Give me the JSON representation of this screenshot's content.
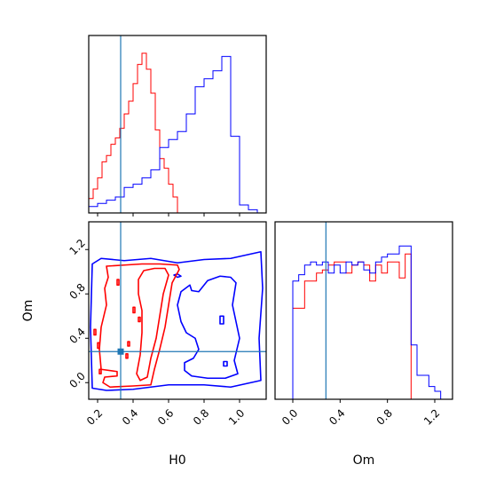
{
  "chart_data": {
    "type": "corner",
    "parameters": [
      "H0",
      "Om"
    ],
    "colors": {
      "red": "#ff0000",
      "blue": "#0000ff",
      "truth": "#1f77b4",
      "frame": "#000000"
    },
    "truth": {
      "H0": 0.33,
      "Om": 0.28
    },
    "panels": {
      "hist_H0": {
        "xlim": [
          0.15,
          1.15
        ],
        "ticks": [
          0.2,
          0.4,
          0.6,
          0.8,
          1.0
        ],
        "series": [
          {
            "color": "red",
            "edges": [
              0.15,
              0.175,
              0.2,
              0.225,
              0.25,
              0.275,
              0.3,
              0.325,
              0.35,
              0.375,
              0.4,
              0.425,
              0.45,
              0.475,
              0.5,
              0.525,
              0.55,
              0.575,
              0.6,
              0.625,
              0.65
            ],
            "values": [
              0.09,
              0.15,
              0.22,
              0.32,
              0.36,
              0.43,
              0.47,
              0.53,
              0.62,
              0.7,
              0.81,
              0.93,
              1.0,
              0.9,
              0.75,
              0.52,
              0.34,
              0.28,
              0.18,
              0.1
            ]
          },
          {
            "color": "blue",
            "edges": [
              0.15,
              0.2,
              0.25,
              0.3,
              0.35,
              0.4,
              0.45,
              0.5,
              0.55,
              0.6,
              0.65,
              0.7,
              0.75,
              0.8,
              0.85,
              0.9,
              0.95,
              1.0,
              1.05,
              1.1,
              1.15
            ],
            "values": [
              0.04,
              0.06,
              0.08,
              0.1,
              0.16,
              0.18,
              0.22,
              0.27,
              0.41,
              0.46,
              0.51,
              0.62,
              0.79,
              0.84,
              0.89,
              0.98,
              0.48,
              0.05,
              0.02,
              0.0
            ]
          }
        ]
      },
      "hist_Om": {
        "xlim": [
          -0.15,
          1.35
        ],
        "ticks": [
          0.0,
          0.4,
          0.8,
          1.2
        ],
        "series": [
          {
            "color": "red",
            "edges": [
              0.0,
              0.05,
              0.1,
              0.15,
              0.2,
              0.25,
              0.3,
              0.35,
              0.4,
              0.45,
              0.5,
              0.55,
              0.6,
              0.65,
              0.7,
              0.75,
              0.8,
              0.85,
              0.9,
              0.95,
              1.0
            ],
            "values": [
              0.57,
              0.57,
              0.74,
              0.74,
              0.79,
              0.81,
              0.84,
              0.86,
              0.86,
              0.79,
              0.84,
              0.86,
              0.84,
              0.74,
              0.84,
              0.79,
              0.86,
              0.86,
              0.76,
              0.91
            ]
          },
          {
            "color": "blue",
            "edges": [
              -0.15,
              -0.1,
              -0.05,
              0.0,
              0.05,
              0.1,
              0.15,
              0.2,
              0.25,
              0.3,
              0.35,
              0.4,
              0.45,
              0.5,
              0.55,
              0.6,
              0.65,
              0.7,
              0.75,
              0.8,
              0.85,
              0.9,
              0.95,
              1.0,
              1.05,
              1.1,
              1.15,
              1.2,
              1.25,
              1.3,
              1.35
            ],
            "values": [
              0.0,
              0.0,
              0.0,
              0.74,
              0.78,
              0.84,
              0.86,
              0.84,
              0.86,
              0.79,
              0.84,
              0.79,
              0.86,
              0.84,
              0.86,
              0.81,
              0.79,
              0.86,
              0.89,
              0.91,
              0.91,
              0.96,
              0.96,
              0.34,
              0.15,
              0.15,
              0.08,
              0.05,
              0.0,
              0.0
            ]
          }
        ]
      },
      "contour": {
        "xlim": [
          0.15,
          1.15
        ],
        "ylim": [
          -0.15,
          1.45
        ],
        "xticks": [
          0.2,
          0.4,
          0.6,
          0.8,
          1.0
        ],
        "yticks": [
          0.0,
          0.4,
          0.8,
          1.2
        ],
        "series": [
          {
            "color": "blue",
            "contours": [
              [
                [
                  0.17,
                  1.07
                ],
                [
                  0.22,
                  1.12
                ],
                [
                  0.35,
                  1.1
                ],
                [
                  0.5,
                  1.12
                ],
                [
                  0.65,
                  1.08
                ],
                [
                  0.8,
                  1.11
                ],
                [
                  0.95,
                  1.12
                ],
                [
                  1.12,
                  1.18
                ],
                [
                  1.13,
                  0.85
                ],
                [
                  1.11,
                  0.4
                ],
                [
                  1.12,
                  0.02
                ],
                [
                  0.95,
                  -0.04
                ],
                [
                  0.8,
                  -0.02
                ],
                [
                  0.6,
                  -0.02
                ],
                [
                  0.4,
                  -0.06
                ],
                [
                  0.25,
                  -0.07
                ],
                [
                  0.17,
                  -0.05
                ],
                [
                  0.16,
                  0.5
                ],
                [
                  0.17,
                  1.07
                ]
              ],
              [
                [
                  0.72,
                  0.88
                ],
                [
                  0.73,
                  0.83
                ],
                [
                  0.77,
                  0.82
                ],
                [
                  0.82,
                  0.92
                ],
                [
                  0.89,
                  0.96
                ],
                [
                  0.95,
                  0.95
                ],
                [
                  0.98,
                  0.9
                ],
                [
                  0.96,
                  0.7
                ],
                [
                  0.98,
                  0.55
                ],
                [
                  1.0,
                  0.4
                ],
                [
                  0.97,
                  0.2
                ],
                [
                  0.99,
                  0.08
                ],
                [
                  0.92,
                  0.04
                ],
                [
                  0.82,
                  0.04
                ],
                [
                  0.73,
                  0.06
                ],
                [
                  0.69,
                  0.11
                ],
                [
                  0.69,
                  0.18
                ],
                [
                  0.74,
                  0.22
                ],
                [
                  0.77,
                  0.3
                ],
                [
                  0.75,
                  0.4
                ],
                [
                  0.7,
                  0.45
                ],
                [
                  0.67,
                  0.55
                ],
                [
                  0.65,
                  0.7
                ],
                [
                  0.67,
                  0.82
                ],
                [
                  0.72,
                  0.88
                ]
              ],
              [
                [
                  0.63,
                  0.97
                ],
                [
                  0.65,
                  0.95
                ],
                [
                  0.67,
                  0.96
                ],
                [
                  0.65,
                  0.98
                ],
                [
                  0.63,
                  0.97
                ]
              ],
              [
                [
                  0.89,
                  0.6
                ],
                [
                  0.91,
                  0.6
                ],
                [
                  0.91,
                  0.53
                ],
                [
                  0.89,
                  0.53
                ],
                [
                  0.89,
                  0.6
                ]
              ],
              [
                [
                  0.91,
                  0.19
                ],
                [
                  0.93,
                  0.19
                ],
                [
                  0.93,
                  0.15
                ],
                [
                  0.91,
                  0.15
                ],
                [
                  0.91,
                  0.19
                ]
              ]
            ]
          },
          {
            "color": "red",
            "contours": [
              [
                [
                  0.25,
                  1.05
                ],
                [
                  0.35,
                  1.06
                ],
                [
                  0.45,
                  1.07
                ],
                [
                  0.55,
                  1.07
                ],
                [
                  0.65,
                  1.06
                ],
                [
                  0.66,
                  1.02
                ],
                [
                  0.62,
                  0.9
                ],
                [
                  0.6,
                  0.7
                ],
                [
                  0.58,
                  0.5
                ],
                [
                  0.55,
                  0.3
                ],
                [
                  0.52,
                  0.12
                ],
                [
                  0.5,
                  -0.02
                ],
                [
                  0.4,
                  -0.03
                ],
                [
                  0.27,
                  -0.04
                ],
                [
                  0.23,
                  0.0
                ],
                [
                  0.24,
                  0.05
                ],
                [
                  0.31,
                  0.06
                ],
                [
                  0.31,
                  0.1
                ],
                [
                  0.22,
                  0.12
                ],
                [
                  0.21,
                  0.3
                ],
                [
                  0.22,
                  0.5
                ],
                [
                  0.25,
                  0.7
                ],
                [
                  0.24,
                  0.85
                ],
                [
                  0.26,
                  0.95
                ],
                [
                  0.25,
                  1.05
                ]
              ],
              [
                [
                  0.43,
                  0.93
                ],
                [
                  0.46,
                  1.01
                ],
                [
                  0.52,
                  1.03
                ],
                [
                  0.58,
                  1.03
                ],
                [
                  0.6,
                  0.97
                ],
                [
                  0.57,
                  0.8
                ],
                [
                  0.55,
                  0.6
                ],
                [
                  0.53,
                  0.4
                ],
                [
                  0.5,
                  0.22
                ],
                [
                  0.48,
                  0.05
                ],
                [
                  0.44,
                  0.02
                ],
                [
                  0.42,
                  0.08
                ],
                [
                  0.44,
                  0.25
                ],
                [
                  0.45,
                  0.45
                ],
                [
                  0.45,
                  0.65
                ],
                [
                  0.43,
                  0.8
                ],
                [
                  0.43,
                  0.93
                ]
              ],
              [
                [
                  0.31,
                  0.93
                ],
                [
                  0.32,
                  0.93
                ],
                [
                  0.32,
                  0.88
                ],
                [
                  0.31,
                  0.88
                ],
                [
                  0.31,
                  0.93
                ]
              ],
              [
                [
                  0.4,
                  0.68
                ],
                [
                  0.41,
                  0.68
                ],
                [
                  0.41,
                  0.63
                ],
                [
                  0.4,
                  0.63
                ],
                [
                  0.4,
                  0.68
                ]
              ],
              [
                [
                  0.43,
                  0.59
                ],
                [
                  0.44,
                  0.59
                ],
                [
                  0.44,
                  0.55
                ],
                [
                  0.43,
                  0.55
                ],
                [
                  0.43,
                  0.59
                ]
              ],
              [
                [
                  0.37,
                  0.37
                ],
                [
                  0.38,
                  0.37
                ],
                [
                  0.38,
                  0.33
                ],
                [
                  0.37,
                  0.33
                ],
                [
                  0.37,
                  0.37
                ]
              ],
              [
                [
                  0.36,
                  0.26
                ],
                [
                  0.37,
                  0.26
                ],
                [
                  0.37,
                  0.22
                ],
                [
                  0.36,
                  0.22
                ],
                [
                  0.36,
                  0.26
                ]
              ],
              [
                [
                  0.2,
                  0.36
                ],
                [
                  0.21,
                  0.36
                ],
                [
                  0.21,
                  0.31
                ],
                [
                  0.2,
                  0.31
                ],
                [
                  0.2,
                  0.36
                ]
              ],
              [
                [
                  0.21,
                  0.12
                ],
                [
                  0.22,
                  0.12
                ],
                [
                  0.22,
                  0.08
                ],
                [
                  0.21,
                  0.08
                ],
                [
                  0.21,
                  0.12
                ]
              ],
              [
                [
                  0.18,
                  0.48
                ],
                [
                  0.19,
                  0.48
                ],
                [
                  0.19,
                  0.43
                ],
                [
                  0.18,
                  0.43
                ],
                [
                  0.18,
                  0.48
                ]
              ]
            ]
          }
        ]
      }
    },
    "xlabel_H0": "H0",
    "xlabel_Om": "Om",
    "ylabel_Om": "Om"
  }
}
